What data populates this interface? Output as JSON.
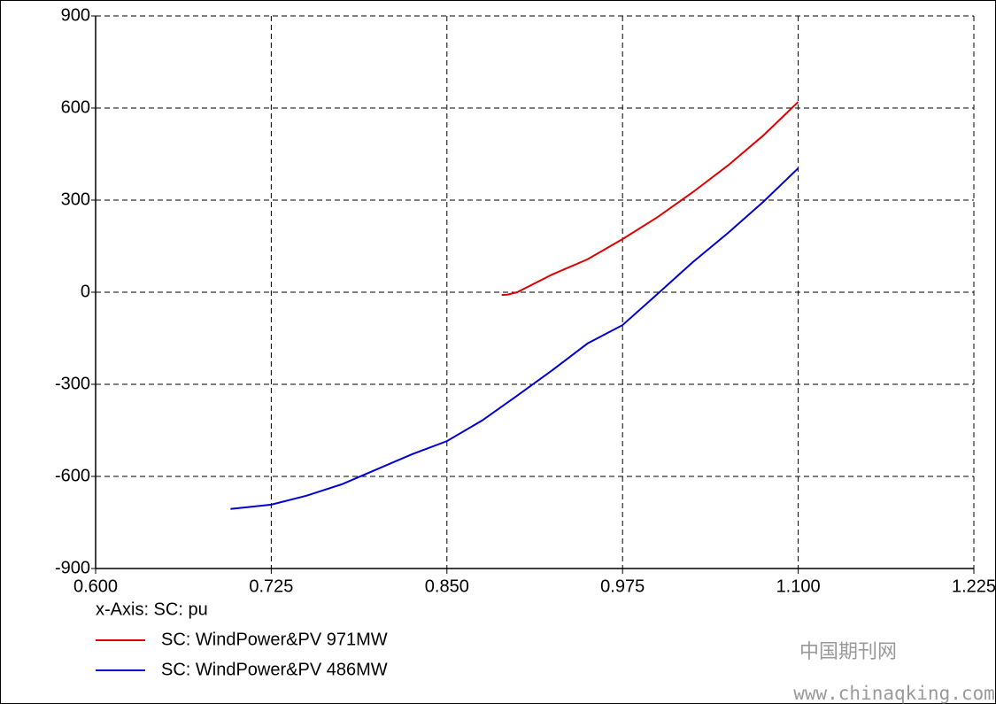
{
  "chart_data": {
    "type": "line",
    "xlabel": "x-Axis: SC: pu",
    "xlim": [
      0.6,
      1.225
    ],
    "xticks": [
      {
        "value": 0.6,
        "label": "0.600"
      },
      {
        "value": 0.725,
        "label": "0.725"
      },
      {
        "value": 0.85,
        "label": "0.850"
      },
      {
        "value": 0.975,
        "label": "0.975"
      },
      {
        "value": 1.1,
        "label": "1.100"
      },
      {
        "value": 1.225,
        "label": "1.225"
      }
    ],
    "ylim": [
      -900,
      900
    ],
    "yticks": [
      900,
      600,
      300,
      0,
      -300,
      -600,
      -900
    ],
    "grid": true,
    "series": [
      {
        "name": "SC: WindPower&PV 971MW",
        "color": "#e00000",
        "x": [
          0.889,
          0.893,
          0.9,
          0.925,
          0.95,
          0.975,
          1.0,
          1.025,
          1.05,
          1.075,
          1.1
        ],
        "values": [
          -9,
          -8,
          0,
          58,
          107,
          173,
          245,
          326,
          413,
          510,
          620
        ]
      },
      {
        "name": "SC: WindPower&PV 486MW",
        "color": "#0000d0",
        "x": [
          0.696,
          0.725,
          0.75,
          0.775,
          0.8,
          0.825,
          0.85,
          0.875,
          0.9,
          0.925,
          0.95,
          0.975,
          1.0,
          1.025,
          1.05,
          1.075,
          1.1
        ],
        "values": [
          -706,
          -692,
          -663,
          -626,
          -577,
          -528,
          -485,
          -418,
          -337,
          -254,
          -167,
          -107,
          -5,
          98,
          193,
          294,
          404
        ]
      }
    ],
    "watermark": [
      "中国期刊网",
      "www.chinaqking.com"
    ]
  }
}
